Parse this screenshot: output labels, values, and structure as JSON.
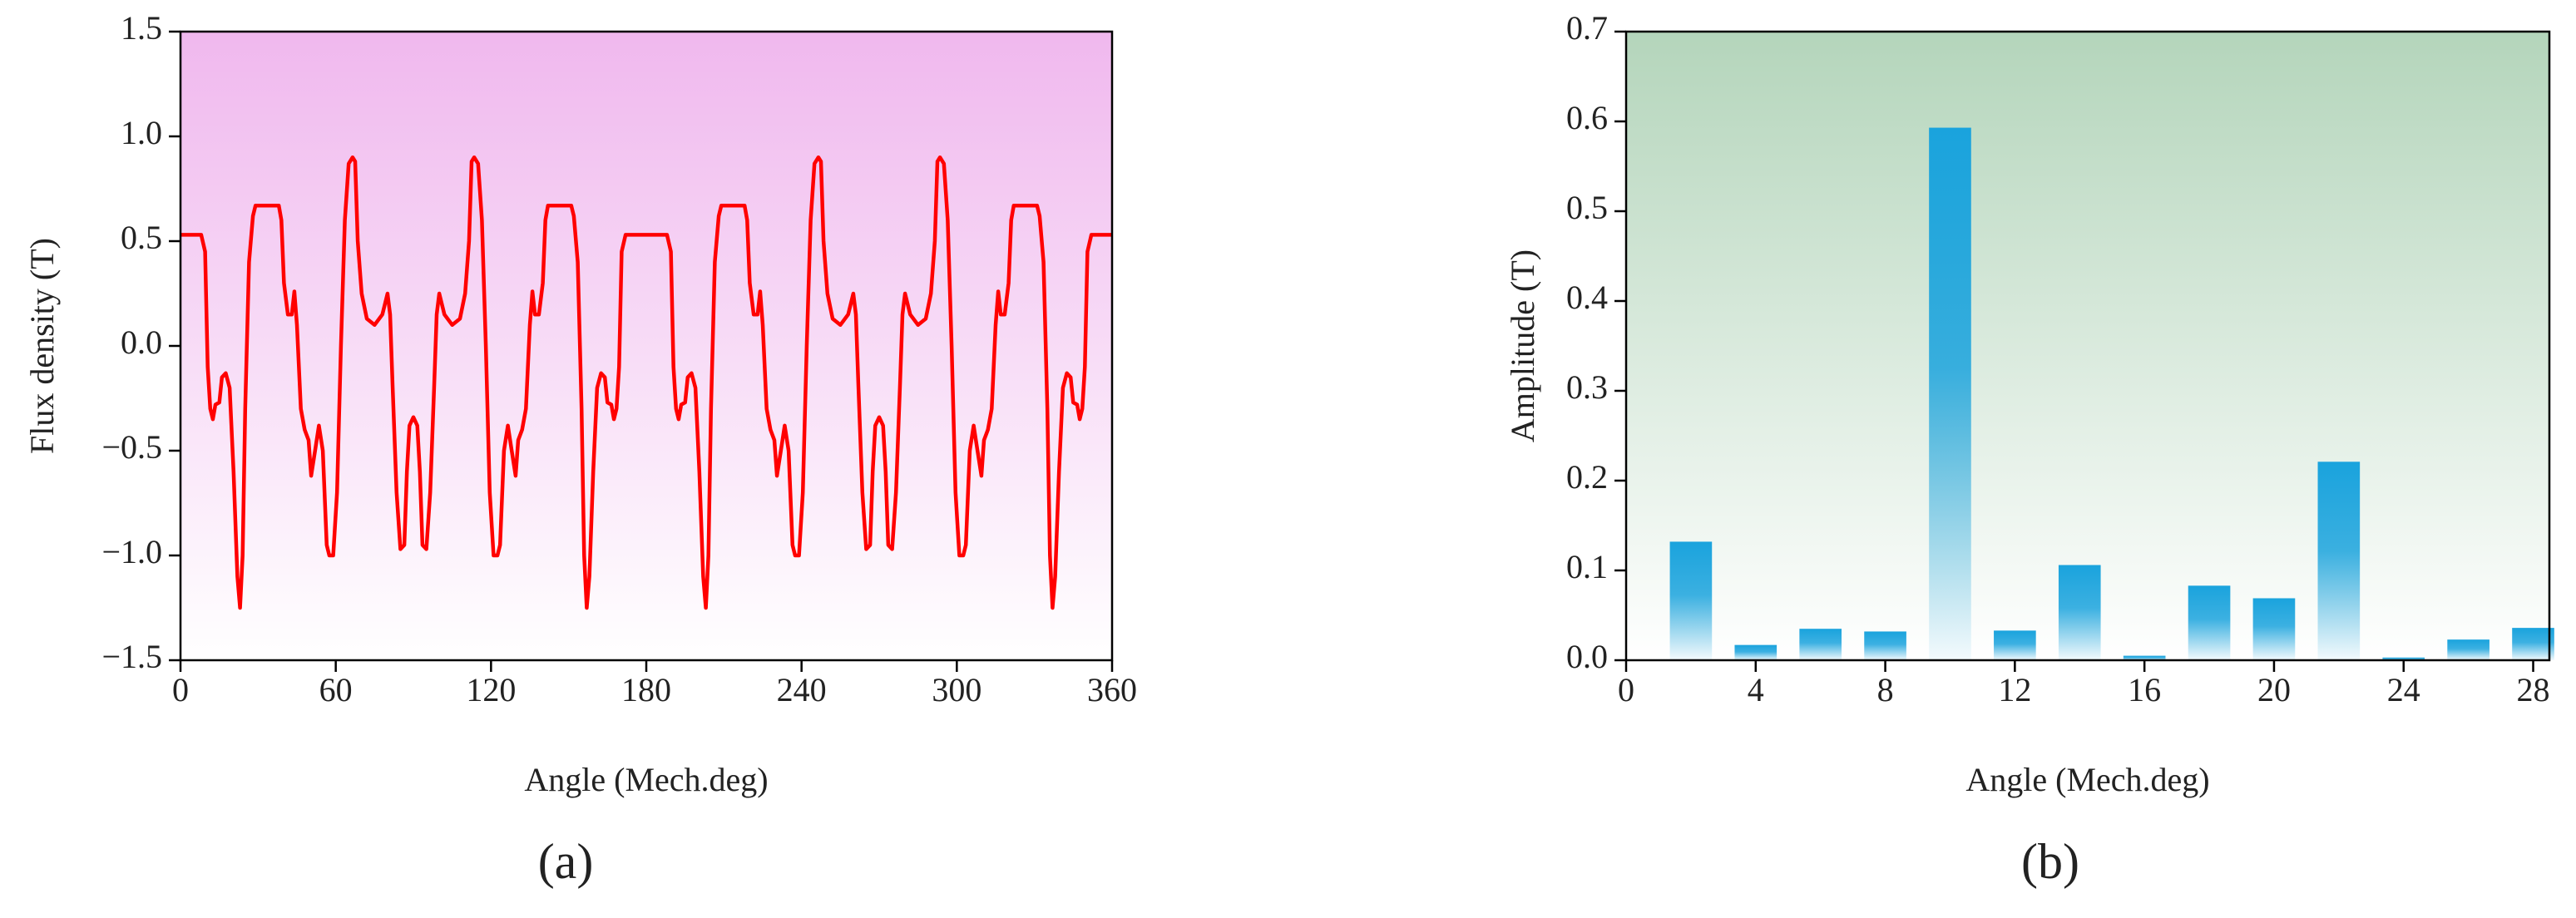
{
  "chart_data": [
    {
      "type": "line",
      "label": "(a)",
      "xlabel": "Angle (Mech.deg)",
      "ylabel": "Flux density (T)",
      "xlim": [
        0,
        360
      ],
      "xticks": [
        0,
        60,
        120,
        180,
        240,
        300,
        360
      ],
      "ylim": [
        -1.5,
        1.5
      ],
      "yticks": [
        1.5,
        {
          "value": 1,
          "label": "1.0"
        },
        0.5,
        {
          "value": 0,
          "label": "0.0"
        },
        {
          "value": -0.5,
          "label": "−0.5"
        },
        {
          "value": -1,
          "label": "−1.0"
        },
        {
          "value": -1.5,
          "label": "−1.5"
        }
      ],
      "color": "#ff0000",
      "x": [
        0,
        8,
        9.5,
        10.5,
        11.5,
        12.5,
        13.5,
        15,
        16,
        17.5,
        19,
        20.5,
        22,
        23,
        24,
        25,
        26.5,
        28,
        29,
        38,
        39,
        40,
        41.5,
        43,
        44,
        45,
        46.5,
        48,
        49.5,
        50.5,
        52,
        53.5,
        55,
        56.5,
        57.5,
        59,
        60.5,
        62,
        63.5,
        65,
        66.5,
        67.5,
        68.5,
        70,
        72,
        75,
        78,
        80,
        81,
        82,
        83.5,
        85,
        86.5,
        87.5,
        88.5,
        90,
        91.5,
        92.5,
        93.5,
        95,
        96.5,
        98,
        99,
        100,
        102,
        105,
        108,
        110,
        111.5,
        112.5,
        113.5,
        115,
        116.5,
        118,
        119.5,
        121,
        122.5,
        123.5,
        125,
        126.5,
        128,
        129.5,
        130.5,
        132,
        133.5,
        135,
        136,
        137,
        138.5,
        140,
        141,
        142,
        151,
        152,
        153.5,
        155,
        156,
        157,
        158,
        159.5,
        161,
        162.5,
        164,
        165,
        166.5,
        167.5,
        168.5,
        169.5,
        170.5,
        172,
        180,
        188,
        189.5,
        190.5,
        191.5,
        192.5,
        193.5,
        195,
        196,
        197.5,
        199,
        200.5,
        202,
        203,
        204,
        205,
        206.5,
        208,
        209,
        218,
        219,
        220,
        221.5,
        223,
        224,
        225,
        226.5,
        228,
        229.5,
        230.5,
        232,
        233.5,
        235,
        236.5,
        237.5,
        239,
        240.5,
        242,
        243.5,
        245,
        246.5,
        247.5,
        248.5,
        250,
        252,
        255,
        258,
        260,
        261,
        262,
        263.5,
        265,
        266.5,
        267.5,
        268.5,
        270,
        271.5,
        272.5,
        273.5,
        275,
        276.5,
        278,
        279,
        280,
        282,
        285,
        288,
        290,
        291.5,
        292.5,
        293.5,
        295,
        296.5,
        298,
        299.5,
        301,
        302.5,
        303.5,
        305,
        306.5,
        308,
        309.5,
        310.5,
        312,
        313.5,
        315,
        316,
        317,
        318.5,
        320,
        321,
        322,
        331,
        332,
        333.5,
        335,
        336,
        337,
        338,
        339.5,
        341,
        342.5,
        344,
        345,
        346.5,
        347.5,
        348.5,
        349.5,
        350.5,
        352,
        360
      ],
      "values": [
        0.53,
        0.53,
        0.45,
        -0.1,
        -0.3,
        -0.35,
        -0.28,
        -0.27,
        -0.15,
        -0.13,
        -0.2,
        -0.6,
        -1.1,
        -1.25,
        -1,
        -0.3,
        0.4,
        0.62,
        0.67,
        0.67,
        0.6,
        0.3,
        0.15,
        0.15,
        0.26,
        0.1,
        -0.3,
        -0.4,
        -0.45,
        -0.62,
        -0.5,
        -0.38,
        -0.5,
        -0.95,
        -1,
        -1,
        -0.7,
        0,
        0.6,
        0.87,
        0.9,
        0.88,
        0.5,
        0.25,
        0.13,
        0.1,
        0.15,
        0.25,
        0.15,
        -0.2,
        -0.7,
        -0.97,
        -0.95,
        -0.6,
        -0.38,
        -0.34,
        -0.38,
        -0.6,
        -0.95,
        -0.97,
        -0.7,
        -0.2,
        0.15,
        0.25,
        0.15,
        0.1,
        0.13,
        0.25,
        0.5,
        0.88,
        0.9,
        0.87,
        0.6,
        0,
        -0.7,
        -1,
        -1,
        -0.95,
        -0.5,
        -0.38,
        -0.5,
        -0.62,
        -0.45,
        -0.4,
        -0.3,
        0.1,
        0.26,
        0.15,
        0.15,
        0.3,
        0.6,
        0.67,
        0.67,
        0.62,
        0.4,
        -0.3,
        -1,
        -1.25,
        -1.1,
        -0.6,
        -0.2,
        -0.13,
        -0.15,
        -0.27,
        -0.28,
        -0.35,
        -0.3,
        -0.1,
        0.45,
        0.53,
        0.53,
        0.53,
        0.45,
        -0.1,
        -0.3,
        -0.35,
        -0.28,
        -0.27,
        -0.15,
        -0.13,
        -0.2,
        -0.6,
        -1.1,
        -1.25,
        -1,
        -0.3,
        0.4,
        0.62,
        0.67,
        0.67,
        0.6,
        0.3,
        0.15,
        0.15,
        0.26,
        0.1,
        -0.3,
        -0.4,
        -0.45,
        -0.62,
        -0.5,
        -0.38,
        -0.5,
        -0.95,
        -1,
        -1,
        -0.7,
        0,
        0.6,
        0.87,
        0.9,
        0.88,
        0.5,
        0.25,
        0.13,
        0.1,
        0.15,
        0.25,
        0.15,
        -0.2,
        -0.7,
        -0.97,
        -0.95,
        -0.6,
        -0.38,
        -0.34,
        -0.38,
        -0.6,
        -0.95,
        -0.97,
        -0.7,
        -0.2,
        0.15,
        0.25,
        0.15,
        0.1,
        0.13,
        0.25,
        0.5,
        0.88,
        0.9,
        0.87,
        0.6,
        0,
        -0.7,
        -1,
        -1,
        -0.95,
        -0.5,
        -0.38,
        -0.5,
        -0.62,
        -0.45,
        -0.4,
        -0.3,
        0.1,
        0.26,
        0.15,
        0.15,
        0.3,
        0.6,
        0.67,
        0.67,
        0.62,
        0.4,
        -0.3,
        -1,
        -1.25,
        -1.1,
        -0.6,
        -0.2,
        -0.13,
        -0.15,
        -0.27,
        -0.28,
        -0.35,
        -0.3,
        -0.1,
        0.45,
        0.53,
        0.53
      ]
    },
    {
      "type": "bar",
      "label": "(b)",
      "xlabel": "Angle (Mech.deg)",
      "ylabel": "Amplitude (T)",
      "xlim": [
        0,
        28.5
      ],
      "xticks": [
        0,
        4,
        8,
        12,
        16,
        20,
        24,
        28
      ],
      "ylim": [
        0,
        0.7
      ],
      "yticks": [
        {
          "value": 0,
          "label": "0.0"
        },
        0.1,
        0.2,
        0.3,
        0.4,
        0.5,
        0.6,
        0.7
      ],
      "color": "#1aa3dd",
      "x": [
        2,
        4,
        6,
        8,
        10,
        12,
        14,
        16,
        18,
        20,
        22,
        24,
        26,
        28
      ],
      "values": [
        0.132,
        0.017,
        0.035,
        0.032,
        0.593,
        0.033,
        0.106,
        0.005,
        0.083,
        0.069,
        0.221,
        0.003,
        0.023,
        0.036
      ]
    }
  ]
}
